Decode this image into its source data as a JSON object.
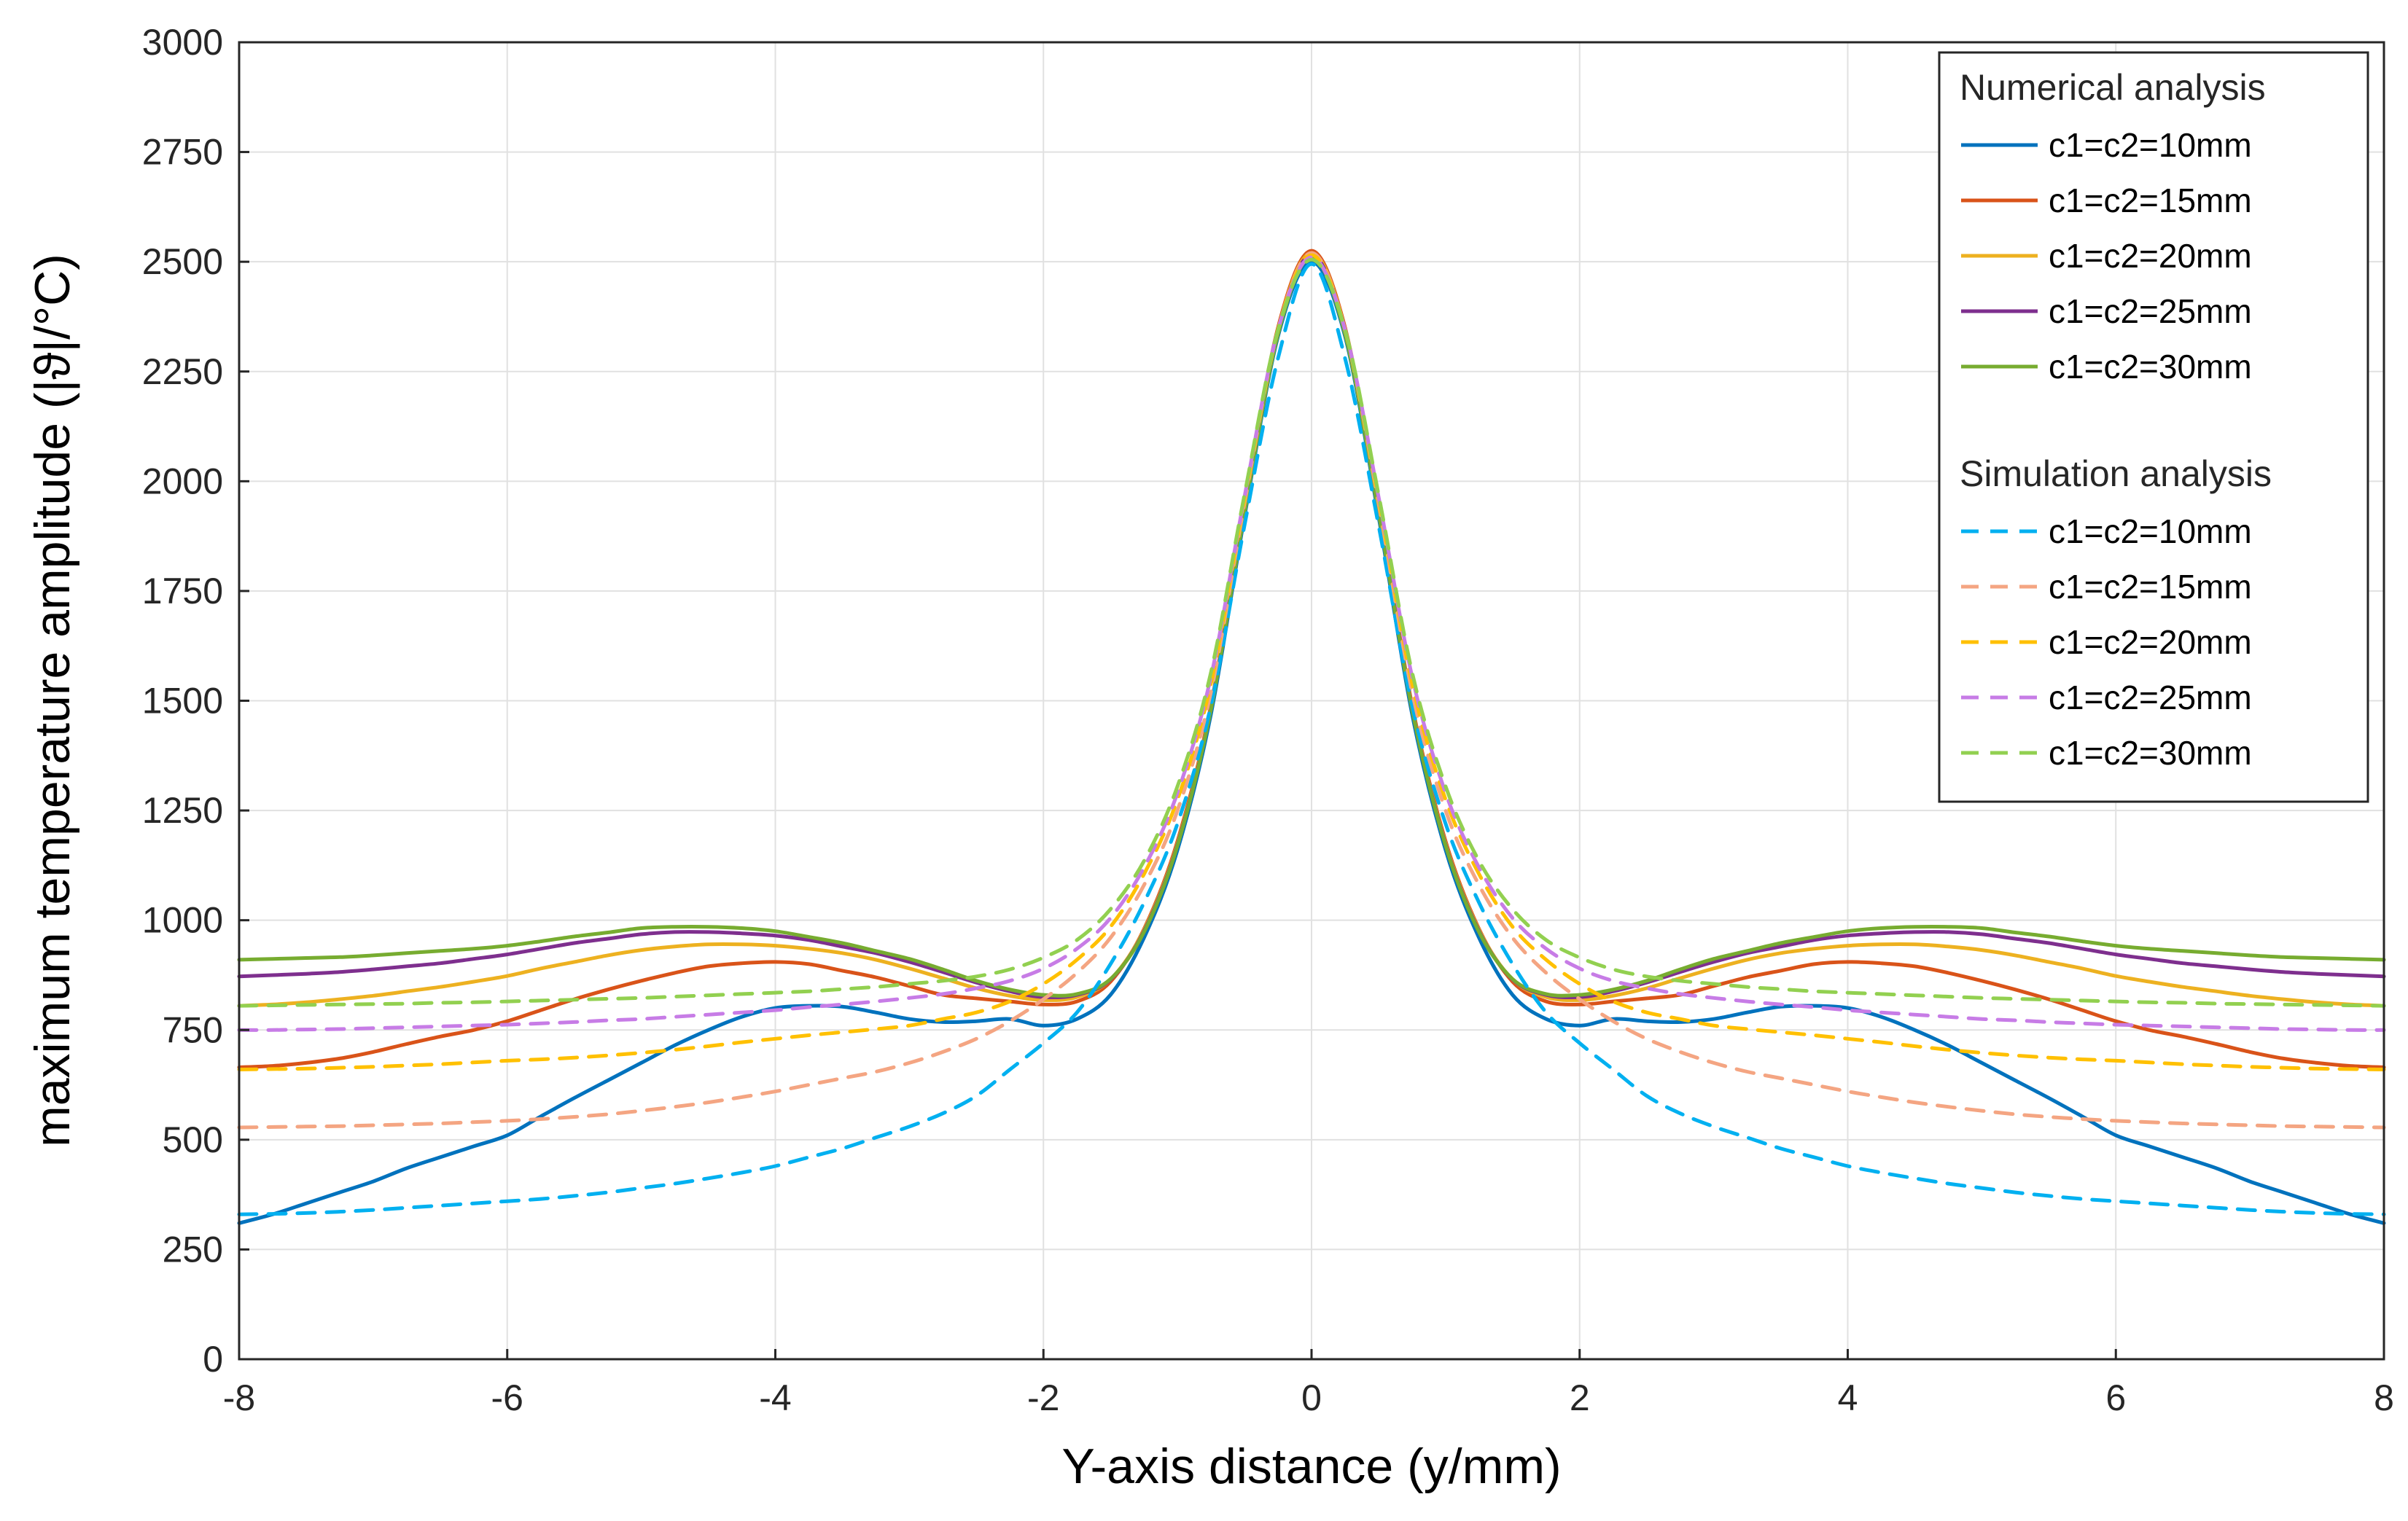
{
  "chart_data": {
    "type": "line",
    "title": "",
    "xlabel": "Y-axis distance (y/mm)",
    "ylabel": "maximum temperature amplitude (|ϑ|/°C)",
    "xlim": [
      -8,
      8
    ],
    "ylim": [
      0,
      3000
    ],
    "xticks": [
      -8,
      -6,
      -4,
      -2,
      0,
      2,
      4,
      6,
      8
    ],
    "yticks": [
      0,
      250,
      500,
      750,
      1000,
      1250,
      1500,
      1750,
      2000,
      2250,
      2500,
      2750,
      3000
    ],
    "grid": true,
    "legend_position": "top-right",
    "x": [
      0,
      0.25,
      0.5,
      0.75,
      1,
      1.25,
      1.5,
      1.75,
      2,
      2.25,
      2.5,
      2.75,
      3,
      3.25,
      3.5,
      3.75,
      4,
      4.25,
      4.5,
      4.75,
      5,
      5.25,
      5.5,
      5.75,
      6,
      6.25,
      6.5,
      6.75,
      7,
      7.25,
      7.5,
      7.75,
      8
    ],
    "symmetric_about_zero": true,
    "legend_groups": [
      {
        "title": "Numerical analysis",
        "style": "solid",
        "series_indices": [
          0,
          1,
          2,
          3,
          4
        ]
      },
      {
        "title": "Simulation analysis",
        "style": "dashed",
        "series_indices": [
          5,
          6,
          7,
          8,
          9
        ]
      }
    ],
    "series": [
      {
        "name": "c1=c2=10mm",
        "group": "Numerical analysis",
        "style": "solid",
        "color": "#0072BD",
        "values": [
          2500,
          2330,
          1920,
          1470,
          1160,
          960,
          830,
          775,
          760,
          775,
          770,
          768,
          775,
          790,
          803,
          805,
          800,
          780,
          750,
          715,
          675,
          635,
          595,
          553,
          510,
          485,
          460,
          435,
          405,
          380,
          355,
          330,
          310
        ]
      },
      {
        "name": "c1=c2=15mm",
        "group": "Numerical analysis",
        "style": "solid",
        "color": "#D95319",
        "values": [
          2525,
          2350,
          1940,
          1490,
          1180,
          980,
          860,
          815,
          808,
          815,
          822,
          830,
          850,
          870,
          885,
          900,
          905,
          902,
          895,
          880,
          862,
          842,
          820,
          795,
          770,
          750,
          735,
          718,
          700,
          685,
          675,
          668,
          665
        ]
      },
      {
        "name": "c1=c2=20mm",
        "group": "Numerical analysis",
        "style": "solid",
        "color": "#EDB120",
        "values": [
          2520,
          2345,
          1935,
          1485,
          1175,
          978,
          865,
          825,
          818,
          828,
          845,
          868,
          890,
          910,
          925,
          935,
          942,
          945,
          945,
          940,
          932,
          920,
          905,
          890,
          873,
          860,
          848,
          838,
          828,
          820,
          813,
          808,
          805
        ]
      },
      {
        "name": "c1=c2=25mm",
        "group": "Numerical analysis",
        "style": "solid",
        "color": "#7E2F8E",
        "values": [
          2515,
          2340,
          1932,
          1482,
          1172,
          975,
          865,
          830,
          825,
          838,
          858,
          882,
          905,
          925,
          940,
          955,
          965,
          970,
          973,
          973,
          968,
          958,
          948,
          935,
          922,
          912,
          902,
          895,
          888,
          882,
          878,
          875,
          872
        ]
      },
      {
        "name": "c1=c2=30mm",
        "group": "Numerical analysis",
        "style": "solid",
        "color": "#77AC30",
        "values": [
          2510,
          2335,
          1928,
          1480,
          1170,
          973,
          866,
          832,
          830,
          842,
          862,
          888,
          912,
          930,
          948,
          962,
          975,
          982,
          985,
          985,
          982,
          972,
          963,
          952,
          942,
          935,
          930,
          925,
          920,
          916,
          914,
          912,
          910
        ]
      },
      {
        "name": "c1=c2=10mm",
        "group": "Simulation analysis",
        "style": "dashed",
        "color": "#00B0F0",
        "values": [
          2495,
          2280,
          1900,
          1490,
          1220,
          1040,
          900,
          790,
          720,
          660,
          600,
          560,
          530,
          505,
          480,
          460,
          440,
          425,
          412,
          400,
          390,
          380,
          372,
          365,
          360,
          355,
          350,
          345,
          340,
          336,
          333,
          331,
          330
        ]
      },
      {
        "name": "c1=c2=15mm",
        "group": "Simulation analysis",
        "style": "dashed",
        "color": "#F4A582",
        "values": [
          2520,
          2345,
          1950,
          1520,
          1250,
          1080,
          960,
          880,
          820,
          770,
          730,
          700,
          675,
          655,
          640,
          625,
          610,
          597,
          585,
          575,
          566,
          558,
          552,
          547,
          543,
          540,
          537,
          535,
          533,
          531,
          530,
          529,
          528
        ]
      },
      {
        "name": "c1=c2=20mm",
        "group": "Simulation analysis",
        "style": "dashed",
        "color": "#FFC000",
        "values": [
          2515,
          2345,
          1960,
          1540,
          1275,
          1105,
          985,
          910,
          855,
          815,
          790,
          775,
          760,
          752,
          745,
          738,
          730,
          722,
          713,
          705,
          698,
          692,
          687,
          683,
          680,
          676,
          672,
          669,
          666,
          664,
          662,
          661,
          660
        ]
      },
      {
        "name": "c1=c2=25mm",
        "group": "Simulation analysis",
        "style": "dashed",
        "color": "#C77CE6",
        "values": [
          2510,
          2345,
          1965,
          1555,
          1290,
          1120,
          1005,
          935,
          890,
          862,
          845,
          832,
          823,
          815,
          808,
          802,
          795,
          790,
          785,
          780,
          775,
          772,
          768,
          765,
          762,
          760,
          758,
          756,
          754,
          752,
          751,
          750,
          750
        ]
      },
      {
        "name": "c1=c2=30mm",
        "group": "Simulation analysis",
        "style": "dashed",
        "color": "#92D050",
        "values": [
          2505,
          2345,
          1970,
          1565,
          1305,
          1135,
          1025,
          955,
          915,
          888,
          872,
          862,
          855,
          848,
          843,
          838,
          835,
          832,
          829,
          826,
          823,
          821,
          819,
          817,
          815,
          813,
          812,
          810,
          809,
          808,
          807,
          806,
          805
        ]
      }
    ]
  }
}
